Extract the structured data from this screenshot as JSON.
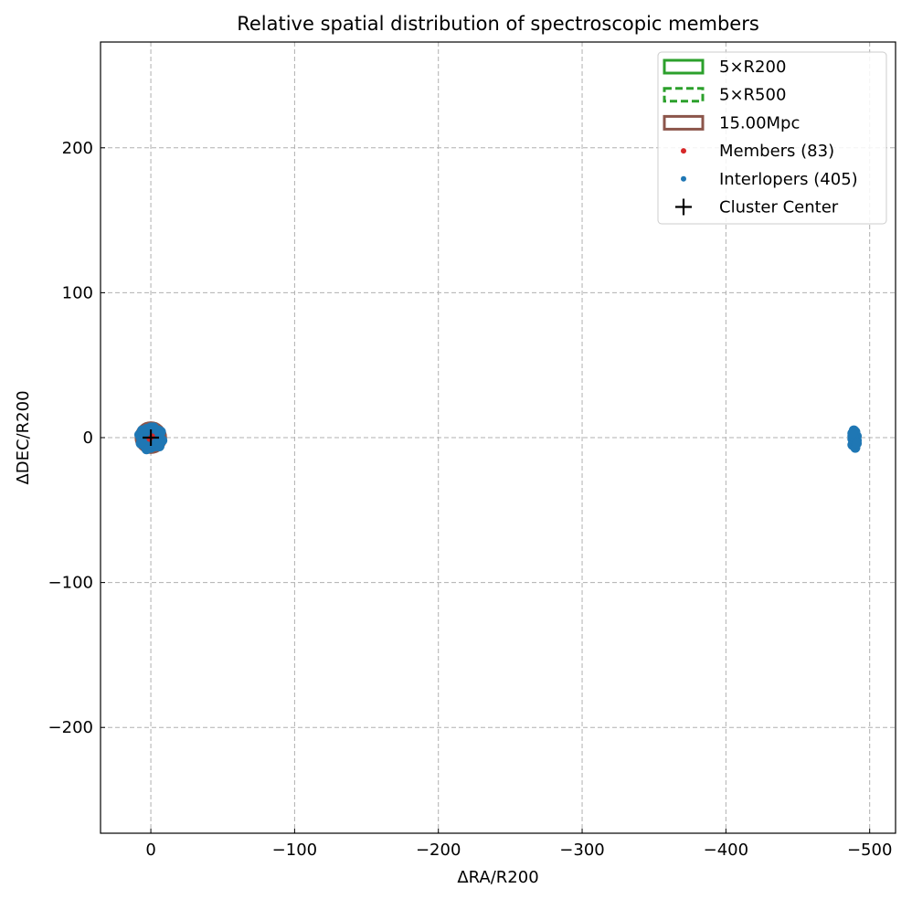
{
  "chart_data": {
    "type": "scatter",
    "title": "Relative spatial distribution of spectroscopic members",
    "xlabel": "ΔRA/R200",
    "ylabel": "ΔDEC/R200",
    "xlim": [
      35,
      -518
    ],
    "ylim": [
      -273,
      273
    ],
    "x_inverted": true,
    "xticks": [
      0,
      -100,
      -200,
      -300,
      -400,
      -500
    ],
    "xtick_labels": [
      "0",
      "−100",
      "−200",
      "−300",
      "−400",
      "−500"
    ],
    "yticks": [
      -200,
      -100,
      0,
      100,
      200
    ],
    "ytick_labels": [
      "−200",
      "−100",
      "0",
      "100",
      "200"
    ],
    "grid": true,
    "legend_position": "top-right",
    "legend": [
      {
        "label": "5×R200",
        "kind": "patch",
        "color": "#2ca02c",
        "style": "solid"
      },
      {
        "label": "5×R500",
        "kind": "patch",
        "color": "#2ca02c",
        "style": "dashed"
      },
      {
        "label": "15.00Mpc",
        "kind": "patch",
        "color": "#8c564b",
        "style": "solid"
      },
      {
        "label": "Members (83)",
        "kind": "dot",
        "color": "#d62728"
      },
      {
        "label": "Interlopers (405)",
        "kind": "dot",
        "color": "#1f77b4"
      },
      {
        "label": "Cluster Center",
        "kind": "plus",
        "color": "#000000"
      }
    ],
    "circles": [
      {
        "name": "15.00Mpc",
        "center": [
          0,
          0
        ],
        "radius": 10,
        "color": "#8c564b"
      }
    ],
    "series": [
      {
        "name": "Interlopers (405)",
        "color": "#1f77b4",
        "points": [
          [
            0,
            0
          ],
          [
            2,
            3
          ],
          [
            -2,
            4
          ],
          [
            3,
            -2
          ],
          [
            -3,
            -3
          ],
          [
            5,
            1
          ],
          [
            -5,
            0
          ],
          [
            1,
            -5
          ],
          [
            -1,
            6
          ],
          [
            4,
            4
          ],
          [
            -4,
            -5
          ],
          [
            6,
            -3
          ],
          [
            -6,
            3
          ],
          [
            0,
            7
          ],
          [
            0,
            -7
          ],
          [
            7,
            0
          ],
          [
            -7,
            -1
          ],
          [
            3,
            6
          ],
          [
            -3,
            -6
          ],
          [
            5,
            -5
          ],
          [
            -5,
            5
          ],
          [
            2,
            -7
          ],
          [
            -2,
            7
          ],
          [
            8,
            2
          ],
          [
            -8,
            -2
          ],
          [
            1,
            1
          ],
          [
            -1,
            -1
          ],
          [
            4,
            -1
          ],
          [
            -4,
            1
          ],
          [
            6,
            5
          ],
          [
            -6,
            -6
          ],
          [
            3,
            -8
          ],
          [
            -7,
            4
          ],
          [
            7,
            -4
          ],
          [
            -1,
            -4
          ],
          [
            2,
            5
          ],
          [
            -6,
            -3
          ],
          [
            5,
            3
          ],
          [
            -3,
            2
          ],
          [
            1,
            -2
          ],
          [
            -489,
            5
          ],
          [
            -489,
            3
          ],
          [
            -490,
            2
          ],
          [
            -488,
            1
          ],
          [
            -490,
            0
          ],
          [
            -489,
            -1
          ],
          [
            -491,
            -2
          ],
          [
            -489,
            -3
          ],
          [
            -490,
            -4
          ],
          [
            -488,
            -5
          ],
          [
            -490,
            -7
          ],
          [
            -489,
            -2
          ],
          [
            -488,
            -1
          ],
          [
            -491,
            1
          ],
          [
            -490,
            4
          ],
          [
            -489,
            0
          ],
          [
            -488,
            3
          ],
          [
            -491,
            -4
          ]
        ]
      },
      {
        "name": "Members (83)",
        "color": "#d62728",
        "points": [
          [
            0,
            0
          ],
          [
            1,
            -1
          ],
          [
            -1,
            1
          ]
        ]
      }
    ],
    "center": [
      0,
      0
    ]
  }
}
